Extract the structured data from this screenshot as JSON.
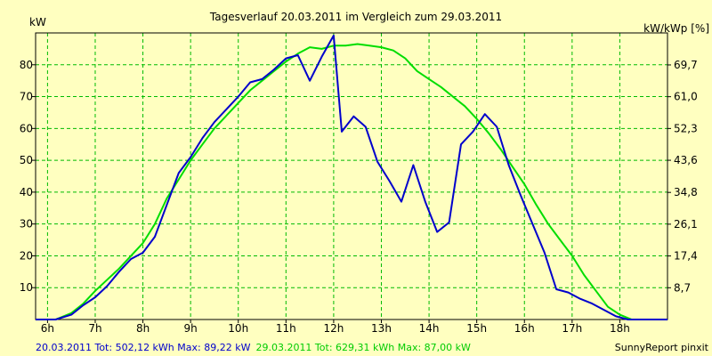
{
  "chart_data": {
    "type": "line",
    "title": "Tagesverlauf 20.03.2011 im Vergleich zum 29.03.2011",
    "ylabel_left": "kW",
    "ylabel_right": "kW/kWp [%]",
    "xlim": [
      5.75,
      19.0
    ],
    "ylim": [
      0,
      90
    ],
    "grid": true,
    "x_ticks": [
      {
        "value": 6,
        "label": "6h"
      },
      {
        "value": 7,
        "label": "7h"
      },
      {
        "value": 8,
        "label": "8h"
      },
      {
        "value": 9,
        "label": "9h"
      },
      {
        "value": 10,
        "label": "10h"
      },
      {
        "value": 11,
        "label": "11h"
      },
      {
        "value": 12,
        "label": "12h"
      },
      {
        "value": 13,
        "label": "13h"
      },
      {
        "value": 14,
        "label": "14h"
      },
      {
        "value": 15,
        "label": "15h"
      },
      {
        "value": 16,
        "label": "16h"
      },
      {
        "value": 17,
        "label": "17h"
      },
      {
        "value": 18,
        "label": "18h"
      }
    ],
    "y_ticks_left": [
      {
        "value": 10,
        "label": "10"
      },
      {
        "value": 20,
        "label": "20"
      },
      {
        "value": 30,
        "label": "30"
      },
      {
        "value": 40,
        "label": "40"
      },
      {
        "value": 50,
        "label": "50"
      },
      {
        "value": 60,
        "label": "60"
      },
      {
        "value": 70,
        "label": "70"
      },
      {
        "value": 80,
        "label": "80"
      }
    ],
    "y_ticks_right": [
      {
        "value": 8.7,
        "label": "8,7"
      },
      {
        "value": 17.4,
        "label": "17,4"
      },
      {
        "value": 26.1,
        "label": "26,1"
      },
      {
        "value": 34.8,
        "label": "34,8"
      },
      {
        "value": 43.6,
        "label": "43,6"
      },
      {
        "value": 52.3,
        "label": "52,3"
      },
      {
        "value": 61.0,
        "label": "61,0"
      },
      {
        "value": 69.7,
        "label": "69,7"
      }
    ],
    "right_axis_ratio": 0.8718,
    "series": [
      {
        "name": "20.03.2011",
        "color": "#0000cc",
        "x": [
          5.75,
          6.17,
          6.5,
          6.75,
          7.0,
          7.25,
          7.5,
          7.75,
          8.0,
          8.25,
          8.5,
          8.75,
          9.0,
          9.25,
          9.5,
          9.75,
          10.0,
          10.25,
          10.5,
          10.75,
          11.0,
          11.25,
          11.5,
          11.75,
          12.0,
          12.17,
          12.42,
          12.67,
          12.92,
          13.17,
          13.42,
          13.67,
          13.92,
          14.17,
          14.42,
          14.67,
          14.92,
          15.17,
          15.42,
          15.67,
          15.92,
          16.17,
          16.42,
          16.67,
          16.92,
          17.17,
          17.42,
          17.67,
          17.92,
          18.17,
          18.42,
          18.67,
          19.0
        ],
        "y": [
          0,
          0,
          1.5,
          4.5,
          7.0,
          10.5,
          15.0,
          19.0,
          21.0,
          26.0,
          36.0,
          46.0,
          51.0,
          57.0,
          62.0,
          66.0,
          70.0,
          74.5,
          75.5,
          78.5,
          82.0,
          83.0,
          75.0,
          82.5,
          89.2,
          59.0,
          63.8,
          60.5,
          49.5,
          43.5,
          37.0,
          48.5,
          37.0,
          27.5,
          30.5,
          55.0,
          59.0,
          64.5,
          60.5,
          48.5,
          39.0,
          30.0,
          21.0,
          9.5,
          8.5,
          6.5,
          5.0,
          3.0,
          1.0,
          0,
          0,
          0,
          0
        ]
      },
      {
        "name": "29.03.2011",
        "color": "#00dd00",
        "x": [
          5.75,
          6.17,
          6.5,
          6.75,
          7.0,
          7.25,
          7.5,
          7.75,
          8.0,
          8.25,
          8.5,
          8.75,
          9.0,
          9.25,
          9.5,
          9.75,
          10.0,
          10.25,
          10.5,
          10.75,
          11.0,
          11.25,
          11.5,
          11.75,
          12.0,
          12.25,
          12.5,
          12.75,
          13.0,
          13.25,
          13.5,
          13.75,
          14.0,
          14.25,
          14.5,
          14.75,
          15.0,
          15.25,
          15.5,
          15.75,
          16.0,
          16.25,
          16.5,
          16.75,
          17.0,
          17.25,
          17.5,
          17.75,
          18.0,
          18.25,
          18.5,
          18.75,
          19.0
        ],
        "y": [
          0,
          0,
          2.0,
          5.0,
          9.0,
          12.5,
          16.0,
          20.0,
          24.0,
          30.0,
          38.0,
          44.0,
          50.0,
          55.0,
          60.0,
          64.0,
          68.0,
          72.0,
          75.0,
          78.0,
          81.0,
          83.5,
          85.5,
          85.0,
          86.0,
          86.0,
          86.5,
          86.0,
          85.5,
          84.5,
          82.0,
          78.0,
          75.5,
          73.0,
          70.0,
          67.0,
          63.0,
          58.5,
          53.5,
          48.0,
          42.5,
          36.0,
          30.0,
          25.0,
          20.0,
          14.0,
          9.0,
          4.0,
          1.5,
          0,
          0,
          0,
          0
        ]
      }
    ],
    "footer": {
      "left_blue": "20.03.2011 Tot: 502,12 kWh Max: 89,22 kW",
      "left_green": "29.03.2011 Tot: 629,31 kWh Max: 87,00 kW",
      "right": "SunnyReport pinxit"
    }
  }
}
